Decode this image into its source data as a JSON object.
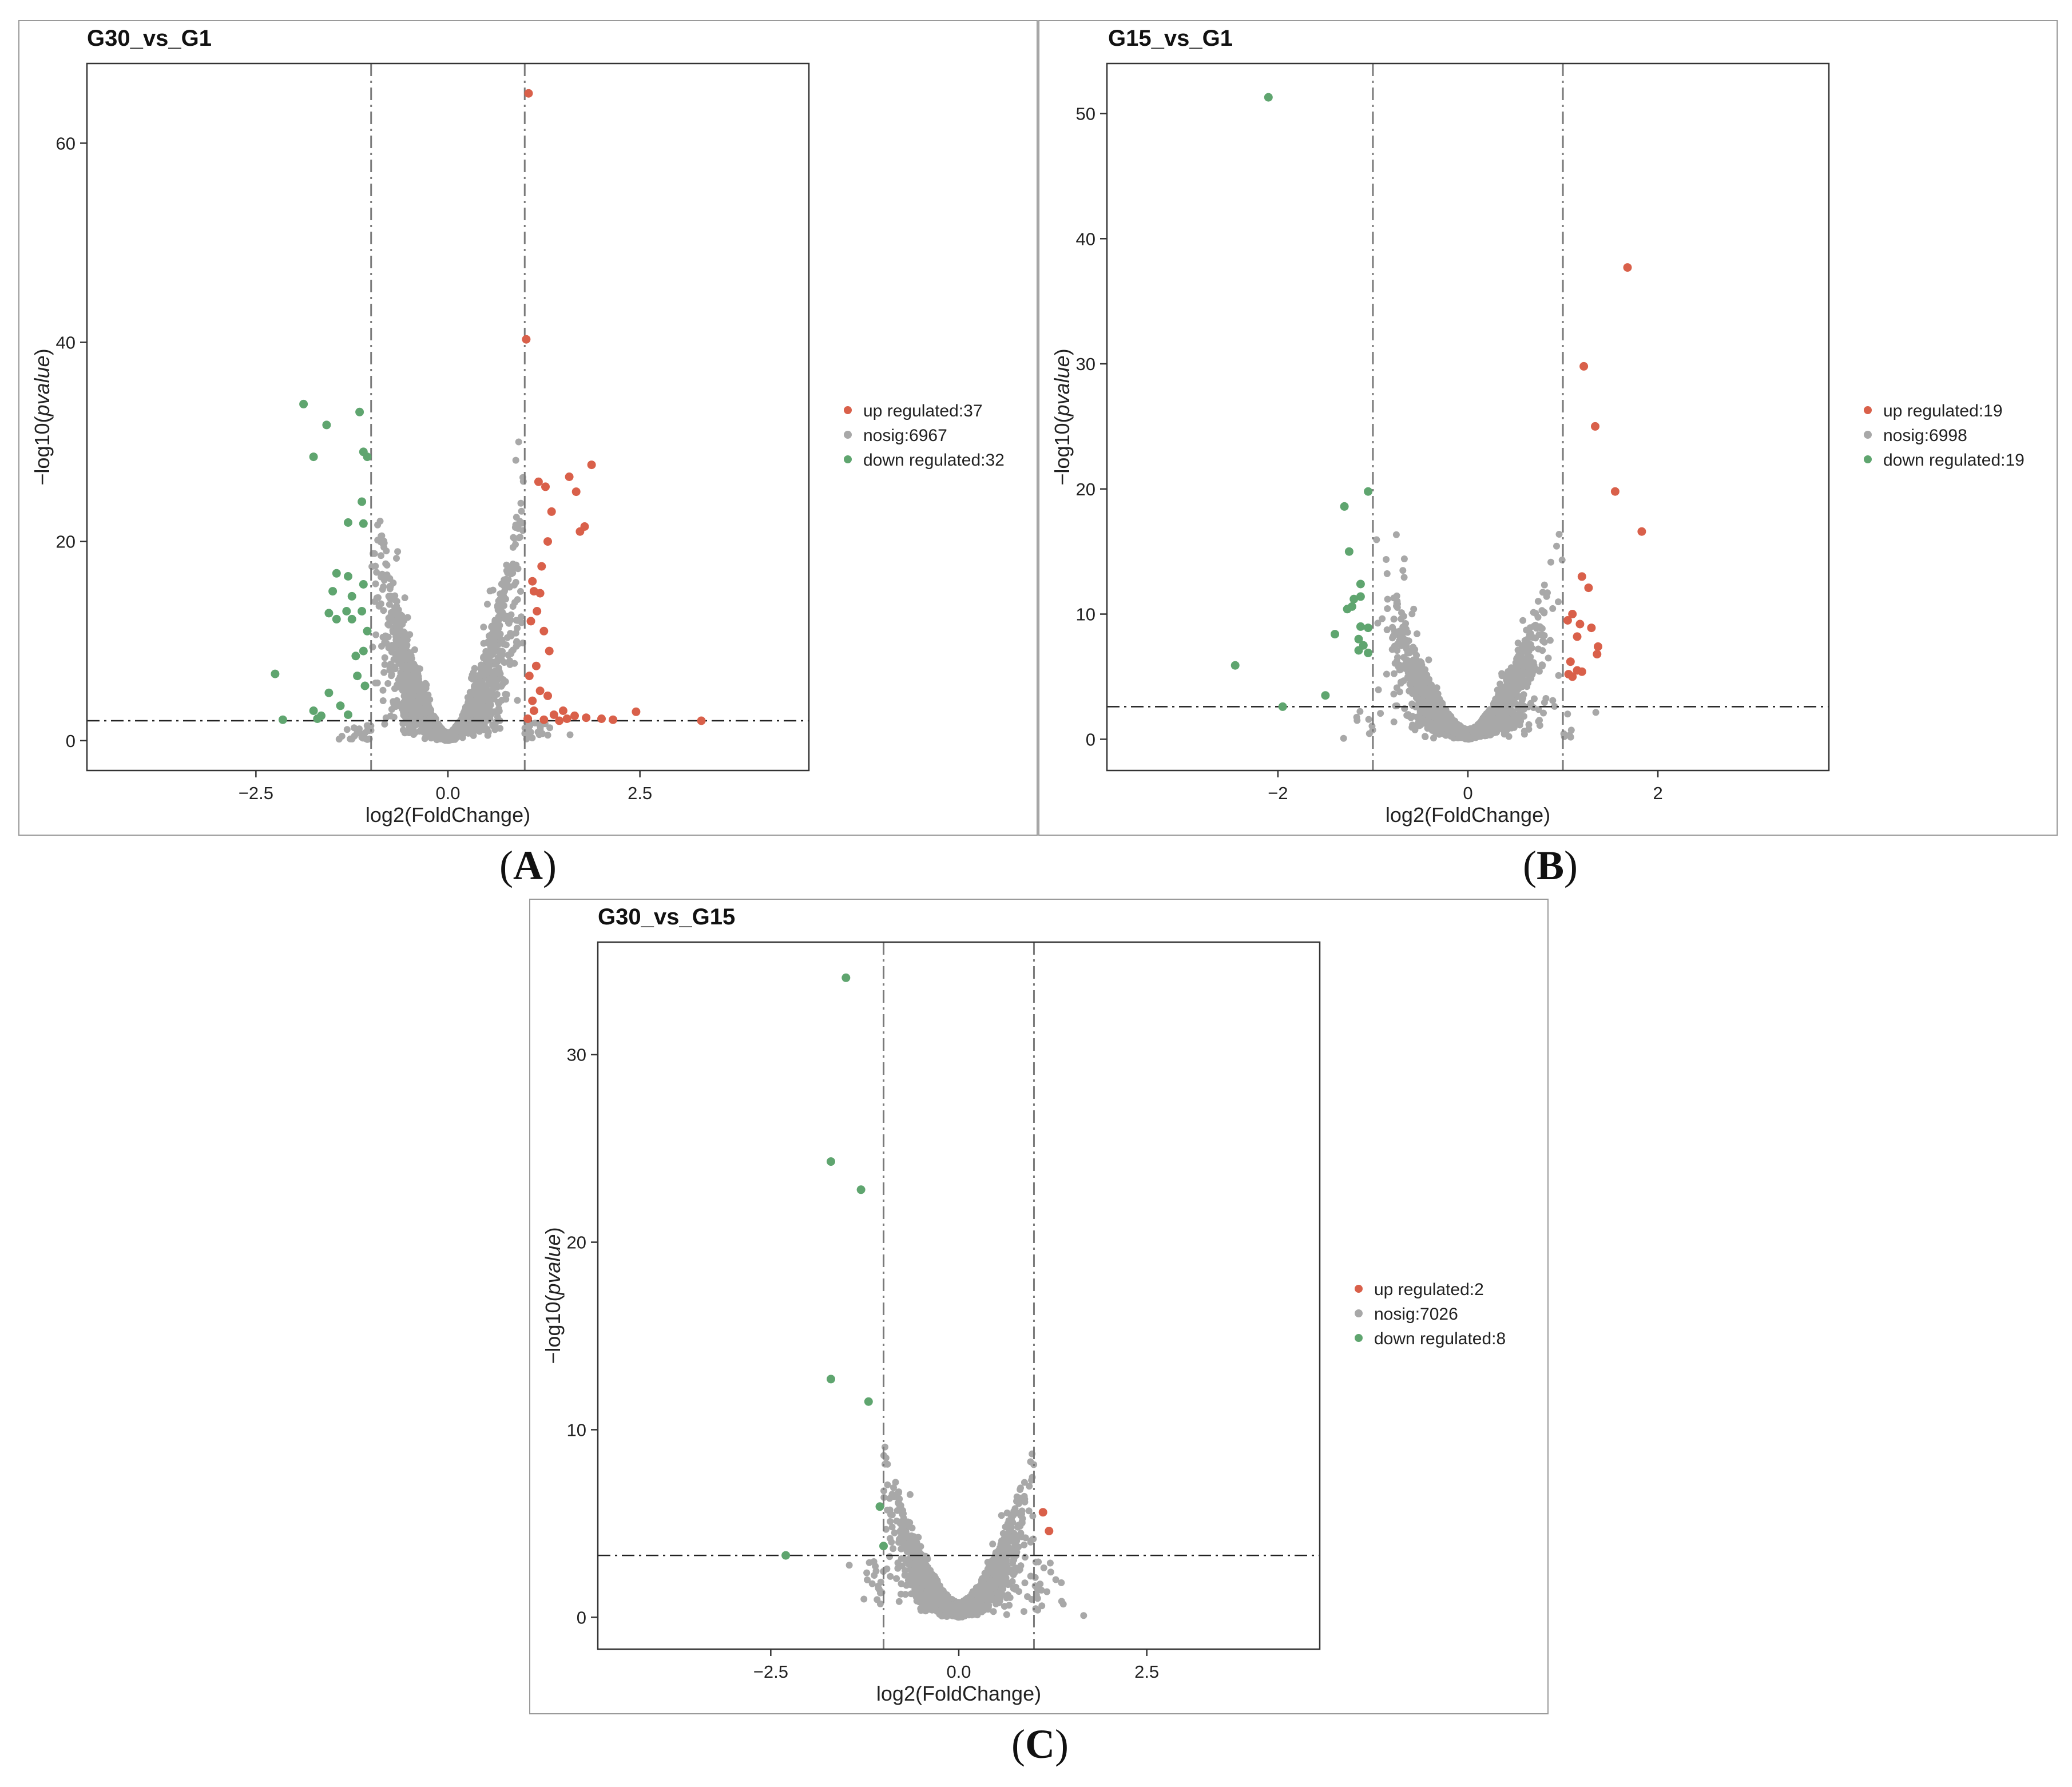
{
  "colors": {
    "up": "#d9604a",
    "nosig": "#a8a8a8",
    "down": "#5fa56f",
    "axis": "#333333",
    "guide": "#7a7a7a"
  },
  "chart_data": [
    {
      "id": "A",
      "type": "scatter",
      "title": "G30_vs_G1",
      "caption_open": "(",
      "caption_letter": "A",
      "caption_close": ")",
      "xlabel": "log2(FoldChange)",
      "ylabel_prefix": "−log10(",
      "ylabel_italic": "pvalue",
      "ylabel_suffix": ")",
      "xlim": [
        -4.7,
        4.7
      ],
      "ylim": [
        -3,
        68
      ],
      "xticks": [
        -2.5,
        0.0,
        2.5
      ],
      "xtick_labels": [
        "−2.5",
        "0.0",
        "2.5"
      ],
      "yticks": [
        0,
        20,
        40,
        60
      ],
      "ytick_labels": [
        "0",
        "20",
        "40",
        "60"
      ],
      "vlines": [
        -1,
        1
      ],
      "hline": 2.0,
      "legend": [
        {
          "label": "up regulated:37",
          "key": "up"
        },
        {
          "label": "nosig:6967",
          "key": "nosig"
        },
        {
          "label": "down regulated:32",
          "key": "down"
        }
      ],
      "cloud": {
        "n": 2600,
        "xspread": 1.3,
        "peak": 26,
        "maxy": 30
      },
      "up": [
        [
          1.05,
          65
        ],
        [
          1.02,
          40.3
        ],
        [
          1.87,
          27.7
        ],
        [
          1.58,
          26.5
        ],
        [
          1.67,
          25
        ],
        [
          1.72,
          21
        ],
        [
          1.78,
          21.5
        ],
        [
          1.18,
          26
        ],
        [
          1.27,
          25.5
        ],
        [
          1.35,
          23
        ],
        [
          1.3,
          20
        ],
        [
          1.22,
          17.5
        ],
        [
          1.1,
          16
        ],
        [
          1.12,
          15
        ],
        [
          1.2,
          14.8
        ],
        [
          1.16,
          13
        ],
        [
          1.08,
          12
        ],
        [
          1.25,
          11
        ],
        [
          1.32,
          9
        ],
        [
          1.15,
          7.5
        ],
        [
          1.06,
          6.5
        ],
        [
          1.2,
          5
        ],
        [
          1.3,
          4.5
        ],
        [
          1.12,
          3
        ],
        [
          1.5,
          3
        ],
        [
          1.65,
          2.5
        ],
        [
          1.8,
          2.3
        ],
        [
          2.0,
          2.2
        ],
        [
          2.15,
          2.1
        ],
        [
          2.45,
          2.9
        ],
        [
          3.3,
          2.0
        ],
        [
          1.04,
          2.2
        ],
        [
          1.25,
          2.1
        ],
        [
          1.45,
          2.0
        ],
        [
          1.1,
          4.0
        ],
        [
          1.38,
          2.6
        ],
        [
          1.55,
          2.2
        ]
      ],
      "down": [
        [
          -1.88,
          33.8
        ],
        [
          -1.58,
          31.7
        ],
        [
          -1.75,
          28.5
        ],
        [
          -1.15,
          33
        ],
        [
          -1.05,
          28.5
        ],
        [
          -1.1,
          29
        ],
        [
          -1.12,
          24
        ],
        [
          -1.1,
          21.8
        ],
        [
          -1.3,
          21.9
        ],
        [
          -1.45,
          16.8
        ],
        [
          -1.3,
          16.5
        ],
        [
          -1.1,
          15.7
        ],
        [
          -1.5,
          15
        ],
        [
          -1.25,
          14.5
        ],
        [
          -1.32,
          13
        ],
        [
          -1.12,
          13
        ],
        [
          -1.45,
          12.2
        ],
        [
          -1.55,
          12.8
        ],
        [
          -1.25,
          12.2
        ],
        [
          -1.05,
          11
        ],
        [
          -1.2,
          8.5
        ],
        [
          -1.1,
          9
        ],
        [
          -2.25,
          6.7
        ],
        [
          -1.55,
          4.8
        ],
        [
          -1.75,
          3
        ],
        [
          -1.7,
          2.2
        ],
        [
          -1.65,
          2.5
        ],
        [
          -2.15,
          2.1
        ],
        [
          -1.4,
          3.5
        ],
        [
          -1.3,
          2.6
        ],
        [
          -1.08,
          5.5
        ],
        [
          -1.18,
          6.5
        ]
      ]
    },
    {
      "id": "B",
      "type": "scatter",
      "title": "G15_vs_G1",
      "caption_open": "(",
      "caption_letter": "B",
      "caption_close": ")",
      "xlabel": "log2(FoldChange)",
      "ylabel_prefix": "−log10(",
      "ylabel_italic": "pvalue",
      "ylabel_suffix": ")",
      "xlim": [
        -3.8,
        3.8
      ],
      "ylim": [
        -2.5,
        54
      ],
      "xticks": [
        -2,
        0,
        2
      ],
      "xtick_labels": [
        "−2",
        "0",
        "2"
      ],
      "yticks": [
        0,
        10,
        20,
        30,
        40,
        50
      ],
      "ytick_labels": [
        "0",
        "10",
        "20",
        "30",
        "40",
        "50"
      ],
      "vlines": [
        -1,
        1
      ],
      "hline": 2.6,
      "legend": [
        {
          "label": "up regulated:19",
          "key": "up"
        },
        {
          "label": "nosig:6998",
          "key": "nosig"
        },
        {
          "label": "down regulated:19",
          "key": "down"
        }
      ],
      "cloud": {
        "n": 2600,
        "xspread": 1.1,
        "peak": 17,
        "maxy": 19.5
      },
      "up": [
        [
          1.68,
          37.7
        ],
        [
          1.22,
          29.8
        ],
        [
          1.34,
          25
        ],
        [
          1.55,
          19.8
        ],
        [
          1.83,
          16.6
        ],
        [
          1.2,
          13
        ],
        [
          1.27,
          12.1
        ],
        [
          1.1,
          10
        ],
        [
          1.05,
          9.5
        ],
        [
          1.18,
          9.2
        ],
        [
          1.3,
          8.9
        ],
        [
          1.37,
          7.4
        ],
        [
          1.36,
          6.8
        ],
        [
          1.15,
          8.2
        ],
        [
          1.08,
          6.2
        ],
        [
          1.15,
          5.5
        ],
        [
          1.06,
          5.2
        ],
        [
          1.1,
          5.0
        ],
        [
          1.2,
          5.4
        ]
      ],
      "down": [
        [
          -2.1,
          51.3
        ],
        [
          -1.05,
          19.8
        ],
        [
          -1.3,
          18.6
        ],
        [
          -1.25,
          15
        ],
        [
          -1.13,
          12.4
        ],
        [
          -1.13,
          11.4
        ],
        [
          -1.2,
          11.2
        ],
        [
          -1.27,
          10.4
        ],
        [
          -1.22,
          10.6
        ],
        [
          -1.13,
          9
        ],
        [
          -1.05,
          8.9
        ],
        [
          -1.4,
          8.4
        ],
        [
          -1.15,
          8.0
        ],
        [
          -1.1,
          7.5
        ],
        [
          -1.05,
          6.9
        ],
        [
          -1.15,
          7.1
        ],
        [
          -2.45,
          5.9
        ],
        [
          -1.5,
          3.5
        ],
        [
          -1.95,
          2.6
        ]
      ]
    },
    {
      "id": "C",
      "type": "scatter",
      "title": "G30_vs_G15",
      "caption_open": "(",
      "caption_letter": "C",
      "caption_close": ")",
      "xlabel": "log2(FoldChange)",
      "ylabel_prefix": "−log10(",
      "ylabel_italic": "pvalue",
      "ylabel_suffix": ")",
      "xlim": [
        -4.8,
        4.8
      ],
      "ylim": [
        -1.7,
        36
      ],
      "xticks": [
        -2.5,
        0.0,
        2.5
      ],
      "xtick_labels": [
        "−2.5",
        "0.0",
        "2.5"
      ],
      "yticks": [
        0,
        10,
        20,
        30
      ],
      "ytick_labels": [
        "0",
        "10",
        "20",
        "30"
      ],
      "vlines": [
        -1,
        1
      ],
      "hline": 3.3,
      "legend": [
        {
          "label": "up regulated:2",
          "key": "up"
        },
        {
          "label": "nosig:7026",
          "key": "nosig"
        },
        {
          "label": "down regulated:8",
          "key": "down"
        }
      ],
      "cloud": {
        "n": 2300,
        "xspread": 1.3,
        "peak": 8.5,
        "maxy": 11
      },
      "up": [
        [
          1.12,
          5.6
        ],
        [
          1.2,
          4.6
        ]
      ],
      "down": [
        [
          -1.5,
          34.1
        ],
        [
          -1.7,
          24.3
        ],
        [
          -1.3,
          22.8
        ],
        [
          -1.7,
          12.7
        ],
        [
          -1.2,
          11.5
        ],
        [
          -1.05,
          5.9
        ],
        [
          -1.0,
          3.8
        ],
        [
          -2.3,
          3.3
        ]
      ]
    }
  ]
}
